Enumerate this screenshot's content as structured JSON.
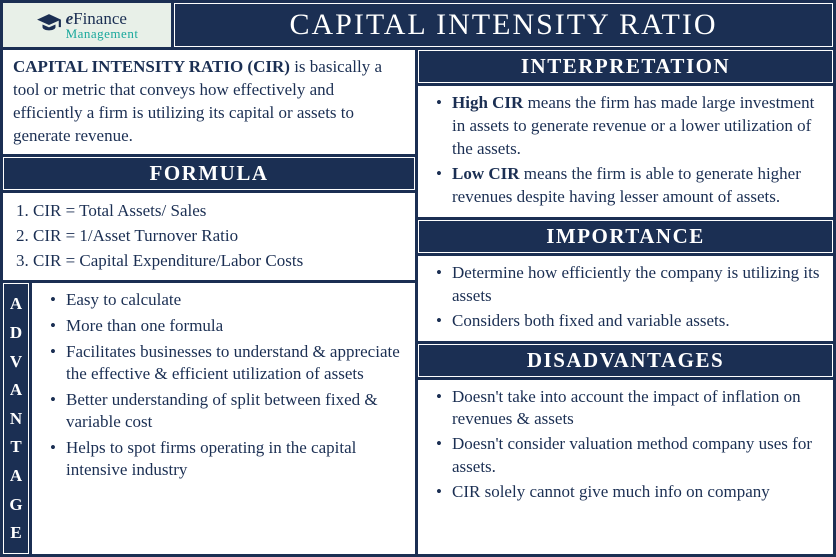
{
  "colors": {
    "primary": "#1b2f53",
    "white": "#ffffff",
    "logo_bg": "#e8f0e8",
    "teal": "#1aa89c"
  },
  "logo": {
    "line1_prefix": "e",
    "line1_rest": "Finance",
    "line2": "Management"
  },
  "title": "CAPITAL INTENSITY RATIO",
  "intro": {
    "bold": "CAPITAL INTENSITY RATIO (CIR)",
    "rest": " is basically a tool or metric that conveys how effectively and efficiently a firm is utilizing its capital or assets to generate revenue."
  },
  "formula": {
    "header": "FORMULA",
    "items": [
      "CIR = Total Assets/ Sales",
      "CIR = 1/Asset Turnover Ratio",
      "CIR = Capital Expenditure/Labor Costs"
    ]
  },
  "advantage": {
    "vertical_label": "ADVANTAGE",
    "items": [
      "Easy to calculate",
      "More than one formula",
      "Facilitates businesses to understand & appreciate the effective & efficient utilization of assets",
      "Better understanding of split between fixed & variable cost",
      "Helps to spot firms operating in  the capital intensive industry"
    ]
  },
  "interpretation": {
    "header": "INTERPRETATION",
    "items": [
      {
        "bold": "High CIR",
        "rest": " means the firm has made large investment in assets to generate revenue or a lower utilization of the assets."
      },
      {
        "bold": "Low CIR",
        "rest": " means the firm is able to generate higher revenues despite having lesser amount of assets."
      }
    ]
  },
  "importance": {
    "header": "IMPORTANCE",
    "items": [
      "Determine how efficiently the company is utilizing its assets",
      "Considers both fixed and variable assets."
    ]
  },
  "disadvantages": {
    "header": "DISADVANTAGES",
    "items": [
      "Doesn't take into account the impact of inflation on revenues & assets",
      "Doesn't consider valuation method company uses for assets.",
      "CIR solely cannot give much info on company"
    ]
  }
}
